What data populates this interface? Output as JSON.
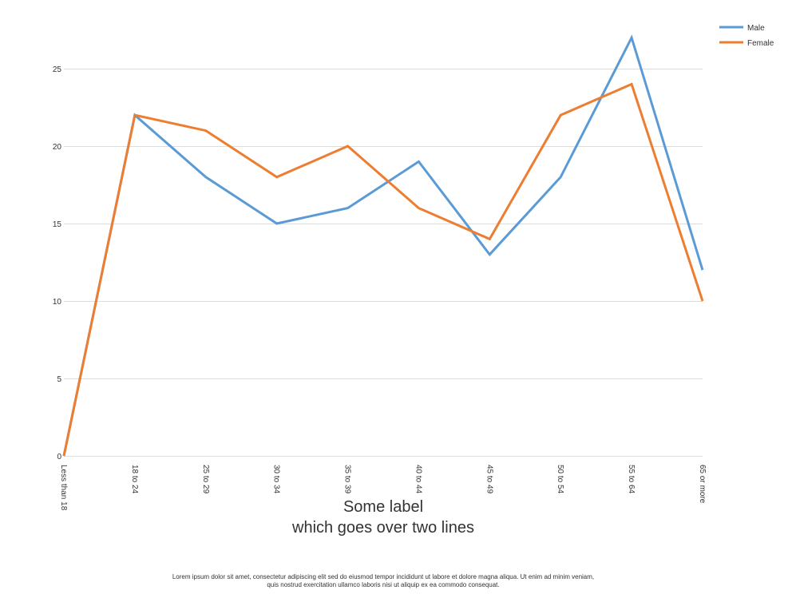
{
  "chart_data": {
    "type": "line",
    "categories": [
      "Less than 18",
      "18 to 24",
      "25 to 29",
      "30 to 34",
      "35 to 39",
      "40 to 44",
      "45 to 49",
      "50 to 54",
      "55 to 64",
      "65 or more"
    ],
    "series": [
      {
        "name": "Male",
        "color": "#5b9bd5",
        "values": [
          0,
          22,
          18,
          15,
          16,
          19,
          13,
          18,
          27,
          12
        ]
      },
      {
        "name": "Female",
        "color": "#ed7d31",
        "values": [
          0,
          22,
          21,
          18,
          20,
          16,
          14,
          22,
          24,
          10
        ]
      }
    ],
    "title": "",
    "xlabel": [
      "Some label",
      "which goes over two lines"
    ],
    "ylabel": "",
    "ylim": [
      0,
      25
    ],
    "yticks": [
      0,
      5,
      10,
      15,
      20,
      25
    ],
    "grid": true,
    "legend_position": "top-right",
    "x_tick_rotation": "vertical"
  },
  "footnote": {
    "line1": "Lorem ipsum dolor sit amet, consectetur adipiscing elit sed do eiusmod tempor incididunt ut labore et dolore magna aliqua. Ut enim ad minim veniam,",
    "line2": "quis nostrud exercitation ullamco laboris nisi ut aliquip ex ea commodo consequat."
  }
}
